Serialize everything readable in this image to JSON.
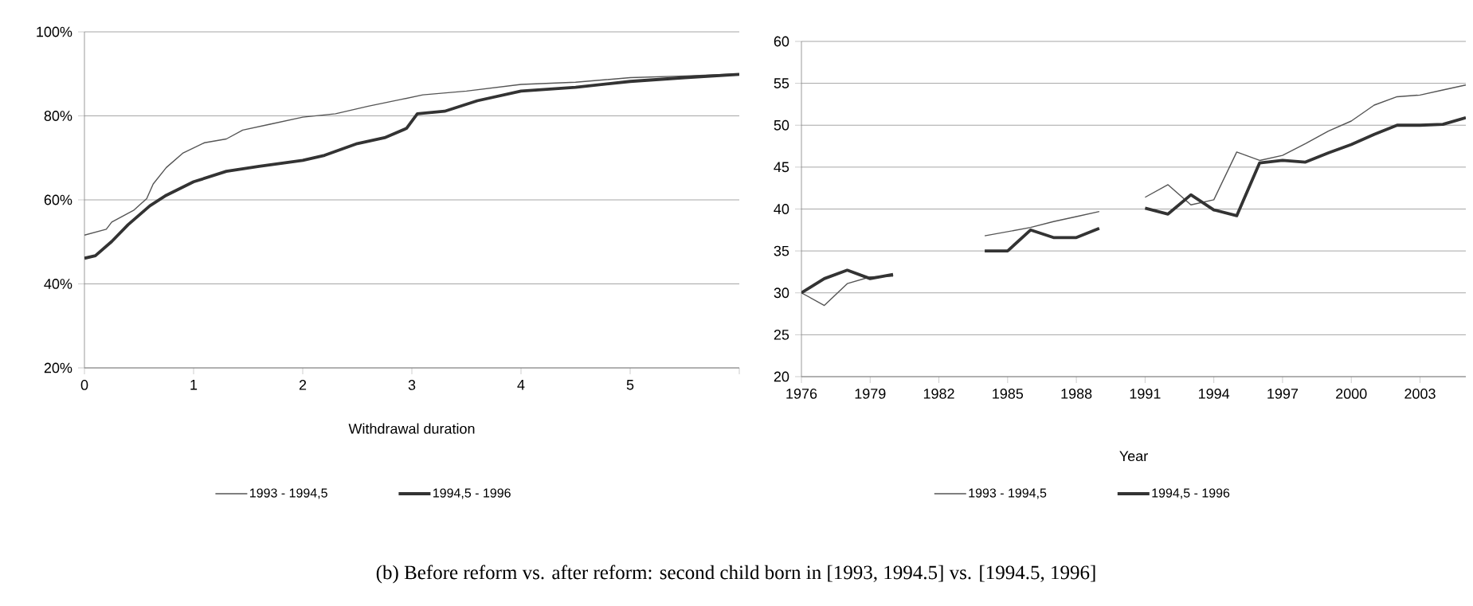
{
  "chart_data": [
    {
      "type": "line",
      "xlabel": "Withdrawal duration",
      "xlim": [
        0,
        6
      ],
      "ylim": [
        20,
        100
      ],
      "xticks": [
        0,
        1,
        2,
        3,
        4,
        5,
        {
          "value": 6,
          "label": null
        }
      ],
      "yticks": [
        {
          "value": 20,
          "label": "20%"
        },
        {
          "value": 40,
          "label": "40%"
        },
        {
          "value": 60,
          "label": "60%"
        },
        {
          "value": 80,
          "label": "80%"
        },
        {
          "value": 100,
          "label": "100%"
        }
      ],
      "grid": "y",
      "legend": "bottom",
      "marker": "none",
      "line_style": "solid",
      "series": [
        {
          "name": "1993 - 1994,5",
          "color": "#555555",
          "x": [
            0,
            0.2,
            0.25,
            0.45,
            0.57,
            0.63,
            0.75,
            0.9,
            1.1,
            1.3,
            1.45,
            1.7,
            2.0,
            2.3,
            2.6,
            2.9,
            3.1,
            3.5,
            4.0,
            4.5,
            5.0,
            5.5,
            6.0
          ],
          "values": [
            51.6,
            53.0,
            54.7,
            57.5,
            60.3,
            63.8,
            67.7,
            71.1,
            73.6,
            74.5,
            76.6,
            78.0,
            79.7,
            80.5,
            82.3,
            83.9,
            85.0,
            85.9,
            87.5,
            88.0,
            89.1,
            89.5,
            90.0
          ]
        },
        {
          "name": "1994,5 - 1996",
          "color": "#333333",
          "x": [
            0,
            0.1,
            0.25,
            0.4,
            0.6,
            0.75,
            1.0,
            1.3,
            1.6,
            2.0,
            2.2,
            2.5,
            2.75,
            2.95,
            3.05,
            3.3,
            3.6,
            4.0,
            4.5,
            5.0,
            5.5,
            6.0
          ],
          "values": [
            46.1,
            46.7,
            50.1,
            54.1,
            58.6,
            61.1,
            64.3,
            66.8,
            68.0,
            69.4,
            70.6,
            73.4,
            74.8,
            77.0,
            80.5,
            81.1,
            83.6,
            85.9,
            86.8,
            88.2,
            89.1,
            89.9
          ]
        }
      ],
      "annotations": [
        "(b) Before reform vs. after reform: second child born in [1993, 1994.5] vs. [1994.5, 1996]"
      ]
    },
    {
      "type": "line",
      "xlabel": "Year",
      "xlim": [
        1976,
        2005
      ],
      "ylim": [
        20,
        60
      ],
      "xticks": [
        1976,
        1979,
        1982,
        1985,
        1988,
        1991,
        1994,
        1997,
        2000,
        2003
      ],
      "yticks": [
        20,
        25,
        30,
        35,
        40,
        45,
        50,
        55,
        60
      ],
      "grid": "y",
      "legend": "bottom",
      "marker": "none",
      "line_style": "solid",
      "x": [
        1976,
        1977,
        1978,
        1979,
        1980,
        1981,
        1982,
        1983,
        1984,
        1985,
        1986,
        1987,
        1988,
        1989,
        1990,
        1991,
        1992,
        1993,
        1994,
        1995,
        1996,
        1997,
        1998,
        1999,
        2000,
        2001,
        2002,
        2003,
        2004,
        2005
      ],
      "series": [
        {
          "name": "1993 - 1994,5",
          "color": "#555555",
          "values": [
            30.0,
            28.5,
            31.1,
            31.9,
            32.0,
            null,
            null,
            null,
            36.8,
            37.3,
            37.8,
            38.5,
            39.1,
            39.7,
            null,
            41.4,
            42.9,
            40.5,
            41.1,
            46.8,
            45.8,
            46.4,
            47.8,
            49.3,
            50.5,
            52.4,
            53.4,
            53.6,
            54.2,
            54.8
          ]
        },
        {
          "name": "1994,5 - 1996",
          "color": "#333333",
          "values": [
            30.0,
            31.7,
            32.7,
            31.7,
            32.2,
            null,
            null,
            null,
            35.0,
            35.0,
            37.5,
            36.6,
            36.6,
            37.7,
            null,
            40.1,
            39.4,
            41.7,
            39.9,
            39.2,
            45.5,
            45.8,
            45.6,
            46.7,
            47.7,
            48.9,
            50.0,
            50.0,
            50.1,
            50.9
          ]
        }
      ]
    }
  ]
}
